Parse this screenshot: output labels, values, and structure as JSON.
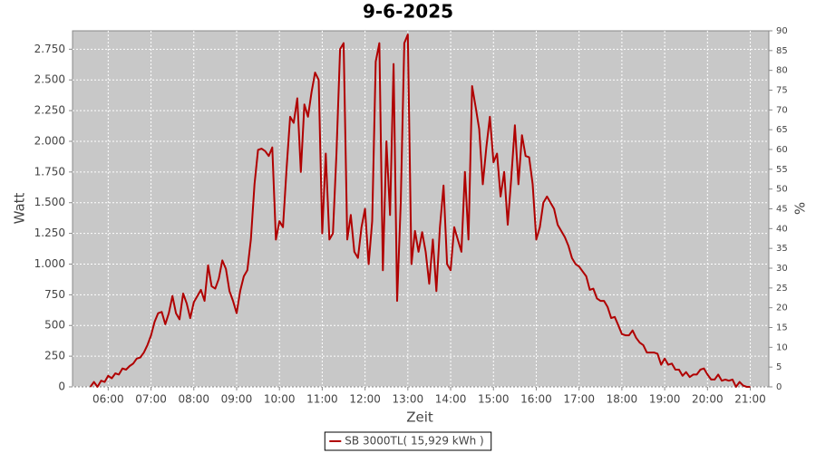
{
  "chart_data": {
    "type": "line",
    "title": "9-6-2025",
    "x_label": "Zeit",
    "y_label": "Watt",
    "y2_label": "%",
    "xlim": [
      "05:10",
      "21:26"
    ],
    "xticks": [
      "06:00",
      "07:00",
      "08:00",
      "09:00",
      "10:00",
      "11:00",
      "12:00",
      "13:00",
      "14:00",
      "15:00",
      "16:00",
      "17:00",
      "18:00",
      "19:00",
      "20:00",
      "21:00"
    ],
    "ylim": [
      0,
      2900
    ],
    "yticks": [
      0,
      250,
      500,
      750,
      {
        "value": 1000,
        "label": "1.000"
      },
      {
        "value": 1250,
        "label": "1.250"
      },
      {
        "value": 1500,
        "label": "1.500"
      },
      {
        "value": 1750,
        "label": "1.750"
      },
      {
        "value": 2000,
        "label": "2.000"
      },
      {
        "value": 2250,
        "label": "2.250"
      },
      {
        "value": 2500,
        "label": "2.500"
      },
      {
        "value": 2750,
        "label": "2.750"
      }
    ],
    "y2lim": [
      0,
      90
    ],
    "y2ticks": [
      0,
      5,
      10,
      15,
      20,
      25,
      30,
      35,
      40,
      45,
      50,
      55,
      60,
      65,
      70,
      75,
      80,
      85,
      90
    ],
    "grid": true,
    "legend": "bottom",
    "x": [
      "05:35",
      "05:40",
      "05:45",
      "05:50",
      "05:55",
      "06:00",
      "06:05",
      "06:10",
      "06:15",
      "06:20",
      "06:25",
      "06:30",
      "06:35",
      "06:40",
      "06:45",
      "06:50",
      "06:55",
      "07:00",
      "07:05",
      "07:10",
      "07:15",
      "07:20",
      "07:25",
      "07:30",
      "07:35",
      "07:40",
      "07:45",
      "07:50",
      "07:55",
      "08:00",
      "08:05",
      "08:10",
      "08:15",
      "08:20",
      "08:25",
      "08:30",
      "08:35",
      "08:40",
      "08:45",
      "08:50",
      "08:55",
      "09:00",
      "09:05",
      "09:10",
      "09:15",
      "09:20",
      "09:25",
      "09:30",
      "09:35",
      "09:40",
      "09:45",
      "09:50",
      "09:55",
      "10:00",
      "10:05",
      "10:10",
      "10:15",
      "10:20",
      "10:25",
      "10:30",
      "10:35",
      "10:40",
      "10:45",
      "10:50",
      "10:55",
      "11:00",
      "11:05",
      "11:10",
      "11:15",
      "11:20",
      "11:25",
      "11:30",
      "11:35",
      "11:40",
      "11:45",
      "11:50",
      "11:55",
      "12:00",
      "12:05",
      "12:10",
      "12:15",
      "12:20",
      "12:25",
      "12:30",
      "12:35",
      "12:40",
      "12:45",
      "12:50",
      "12:55",
      "13:00",
      "13:05",
      "13:10",
      "13:15",
      "13:20",
      "13:25",
      "13:30",
      "13:35",
      "13:40",
      "13:45",
      "13:50",
      "13:55",
      "14:00",
      "14:05",
      "14:10",
      "14:15",
      "14:20",
      "14:25",
      "14:30",
      "14:35",
      "14:40",
      "14:45",
      "14:50",
      "14:55",
      "15:00",
      "15:05",
      "15:10",
      "15:15",
      "15:20",
      "15:25",
      "15:30",
      "15:35",
      "15:40",
      "15:45",
      "15:50",
      "15:55",
      "16:00",
      "16:05",
      "16:10",
      "16:15",
      "16:20",
      "16:25",
      "16:30",
      "16:35",
      "16:40",
      "16:45",
      "16:50",
      "16:55",
      "17:00",
      "17:05",
      "17:10",
      "17:15",
      "17:20",
      "17:25",
      "17:30",
      "17:35",
      "17:40",
      "17:45",
      "17:50",
      "17:55",
      "18:00",
      "18:05",
      "18:10",
      "18:15",
      "18:20",
      "18:25",
      "18:30",
      "18:35",
      "18:40",
      "18:45",
      "18:50",
      "18:55",
      "19:00",
      "19:05",
      "19:10",
      "19:15",
      "19:20",
      "19:25",
      "19:30",
      "19:35",
      "19:40",
      "19:45",
      "19:50",
      "19:55",
      "20:00",
      "20:05",
      "20:10",
      "20:15",
      "20:20",
      "20:25",
      "20:30",
      "20:35",
      "20:40",
      "20:45",
      "20:50",
      "20:55",
      "21:00"
    ],
    "series": [
      {
        "name": "SB 3000TL( 15,929 kWh )",
        "color": "#b00000",
        "values": [
          0,
          40,
          0,
          50,
          40,
          90,
          70,
          110,
          100,
          150,
          140,
          170,
          190,
          230,
          240,
          280,
          340,
          420,
          530,
          600,
          610,
          510,
          600,
          740,
          600,
          550,
          760,
          680,
          560,
          690,
          740,
          790,
          700,
          990,
          820,
          800,
          880,
          1030,
          960,
          780,
          700,
          600,
          780,
          900,
          950,
          1200,
          1650,
          1930,
          1940,
          1920,
          1880,
          1950,
          1200,
          1350,
          1300,
          1780,
          2200,
          2150,
          2350,
          1750,
          2300,
          2200,
          2400,
          2560,
          2500,
          1250,
          1900,
          1200,
          1250,
          1900,
          2750,
          2800,
          1200,
          1400,
          1100,
          1050,
          1300,
          1450,
          1000,
          1350,
          2650,
          2800,
          950,
          2000,
          1400,
          2630,
          700,
          1500,
          2800,
          2870,
          1000,
          1270,
          1100,
          1260,
          1100,
          840,
          1200,
          780,
          1300,
          1640,
          1000,
          950,
          1300,
          1200,
          1100,
          1750,
          1200,
          2450,
          2280,
          2100,
          1650,
          1950,
          2200,
          1830,
          1900,
          1550,
          1750,
          1320,
          1700,
          2130,
          1650,
          2050,
          1880,
          1870,
          1650,
          1200,
          1300,
          1500,
          1550,
          1500,
          1450,
          1320,
          1270,
          1220,
          1150,
          1050,
          1000,
          980,
          940,
          900,
          790,
          800,
          720,
          700,
          700,
          650,
          560,
          570,
          500,
          430,
          420,
          420,
          460,
          400,
          360,
          340,
          280,
          280,
          280,
          270,
          180,
          230,
          180,
          190,
          140,
          140,
          90,
          120,
          80,
          100,
          100,
          140,
          150,
          100,
          60,
          60,
          100,
          50,
          60,
          50,
          60,
          0,
          40,
          10,
          0,
          0
        ]
      }
    ]
  }
}
